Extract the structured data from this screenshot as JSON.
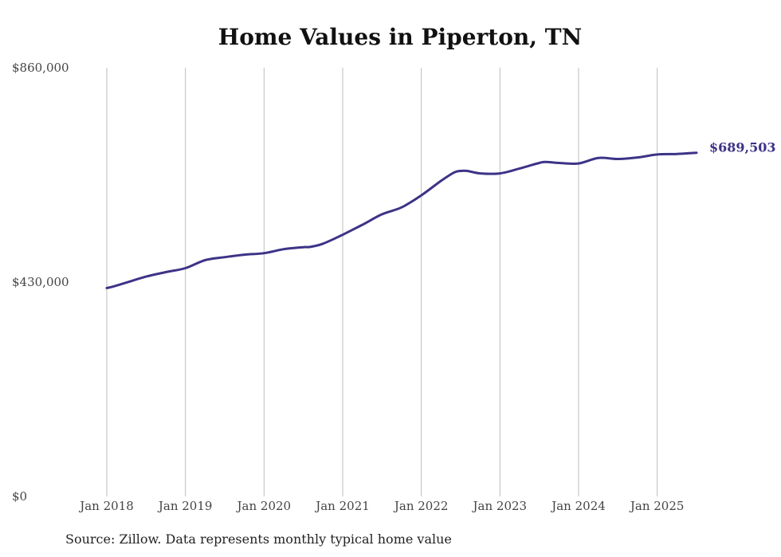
{
  "chart_data": {
    "type": "line",
    "title": "Home Values in Piperton, TN",
    "xlabel": "",
    "ylabel": "",
    "ylim": [
      0,
      860000
    ],
    "y_ticks": [
      "$860,000",
      "$430,000",
      "$0"
    ],
    "y_tick_values": [
      860000,
      430000,
      0
    ],
    "x_ticks": [
      "Jan 2018",
      "Jan 2019",
      "Jan 2020",
      "Jan 2021",
      "Jan 2022",
      "Jan 2023",
      "Jan 2024",
      "Jan 2025"
    ],
    "x_tick_values": [
      2018.0,
      2019.0,
      2020.0,
      2021.0,
      2022.0,
      2023.0,
      2024.0,
      2025.0
    ],
    "xlim": [
      2018.0,
      2025.5
    ],
    "grid": "vertical",
    "line_color": "#3d3387",
    "end_label": "$689,503",
    "series": [
      {
        "x": [
          2018.0,
          2018.083,
          2018.25,
          2018.5,
          2018.75,
          2019.0,
          2019.25,
          2019.5,
          2019.75,
          2020.0,
          2020.25,
          2020.5,
          2020.583,
          2020.75,
          2021.0,
          2021.25,
          2021.5,
          2021.75,
          2022.0,
          2022.25,
          2022.417,
          2022.5,
          2022.583,
          2022.75,
          2023.0,
          2023.25,
          2023.5,
          2023.583,
          2023.75,
          2024.0,
          2024.25,
          2024.5,
          2024.75,
          2025.0,
          2025.25,
          2025.5
        ],
        "values": [
          418000,
          421000,
          429000,
          441000,
          450000,
          458000,
          474000,
          480000,
          485000,
          488000,
          496000,
          500000,
          500500,
          507000,
          525000,
          545000,
          566000,
          580000,
          604000,
          633000,
          650000,
          653000,
          653000,
          648000,
          648000,
          658000,
          669000,
          671000,
          669000,
          668000,
          679000,
          677000,
          680000,
          686000,
          687000,
          689503
        ]
      }
    ]
  },
  "source_note": "Source: Zillow. Data represents monthly typical home value"
}
